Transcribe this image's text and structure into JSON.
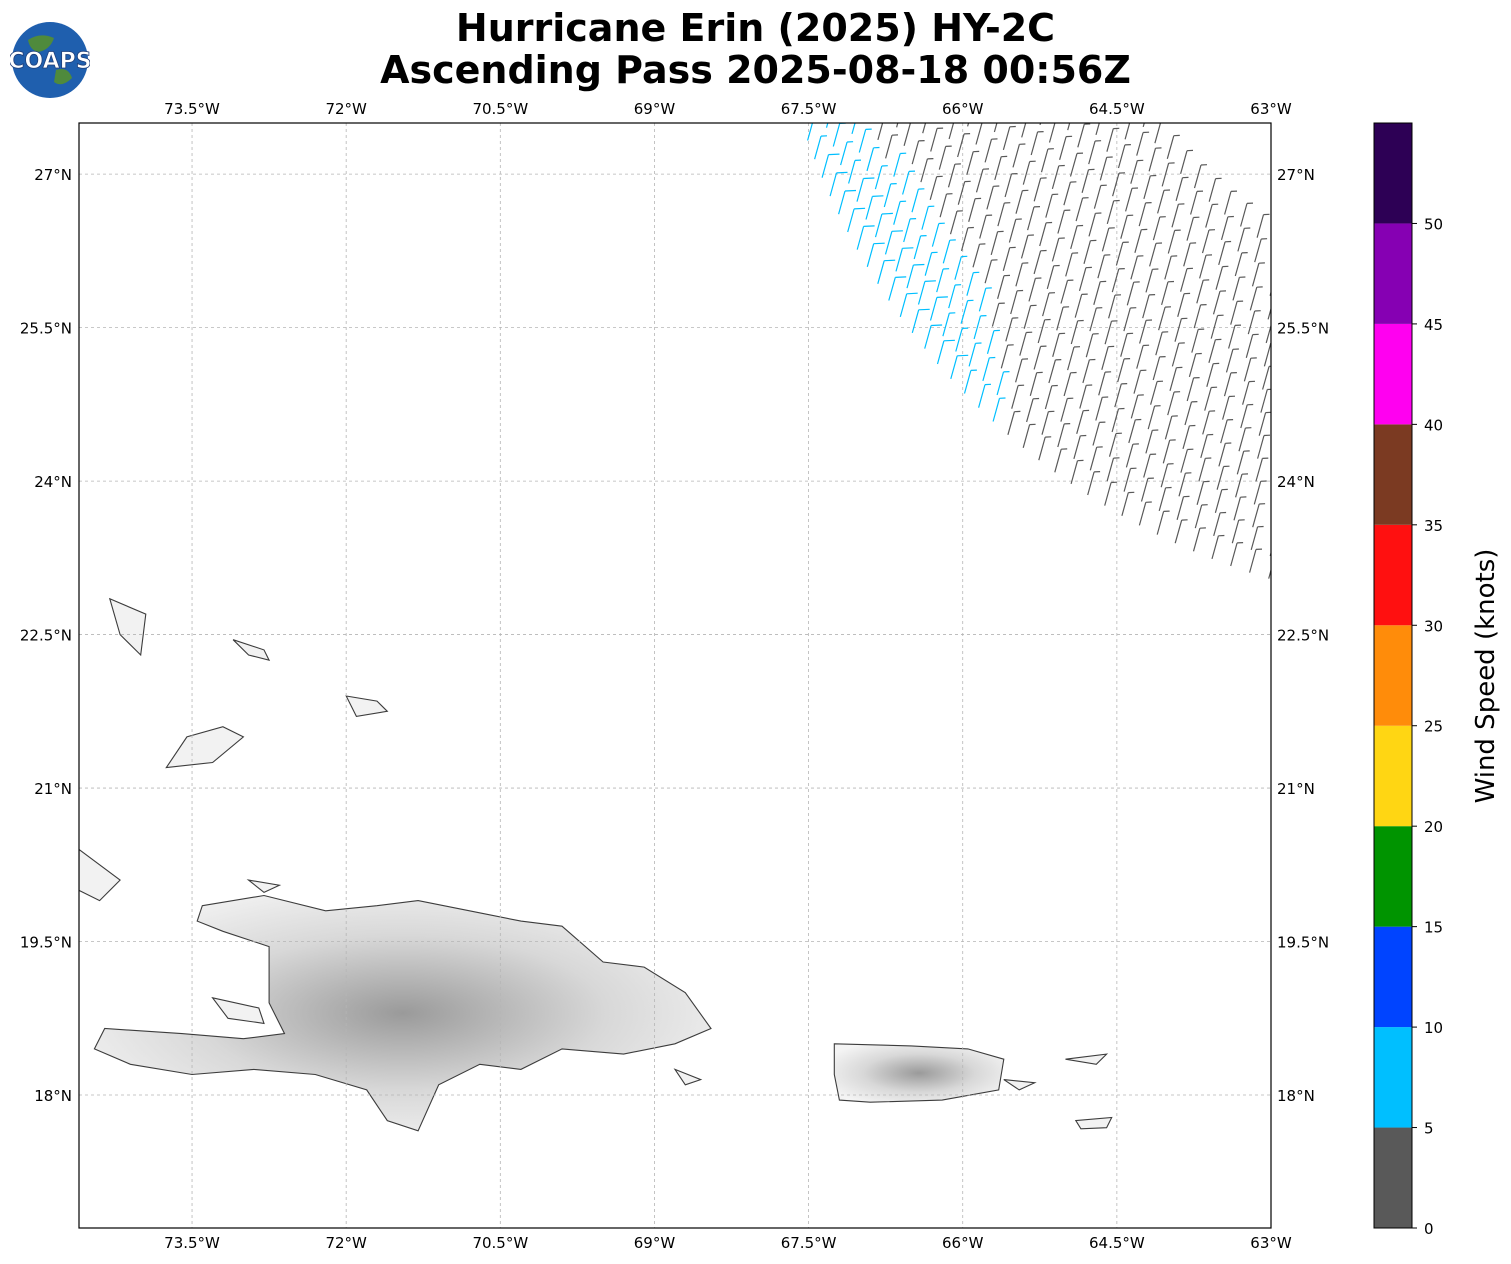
{
  "title": {
    "line1": "Hurricane Erin (2025) HY-2C",
    "line2": "Ascending Pass 2025-08-18 00:56Z"
  },
  "logo": {
    "text": "COAPS",
    "icon": "globe-logo-icon"
  },
  "map": {
    "lon_range": [
      -74.6,
      -63.0
    ],
    "lat_range": [
      16.7,
      27.5
    ],
    "grid": true,
    "lon_ticks": [
      {
        "value": -73.5,
        "label": "73.5°W"
      },
      {
        "value": -72.0,
        "label": "72°W"
      },
      {
        "value": -70.5,
        "label": "70.5°W"
      },
      {
        "value": -69.0,
        "label": "69°W"
      },
      {
        "value": -67.5,
        "label": "67.5°W"
      },
      {
        "value": -66.0,
        "label": "66°W"
      },
      {
        "value": -64.5,
        "label": "64.5°W"
      },
      {
        "value": -63.0,
        "label": "63°W"
      }
    ],
    "lat_ticks": [
      {
        "value": 27.0,
        "label": "27°N"
      },
      {
        "value": 25.5,
        "label": "25.5°N"
      },
      {
        "value": 24.0,
        "label": "24°N"
      },
      {
        "value": 22.5,
        "label": "22.5°N"
      },
      {
        "value": 21.0,
        "label": "21°N"
      },
      {
        "value": 19.5,
        "label": "19.5°N"
      },
      {
        "value": 18.0,
        "label": "18°N"
      }
    ],
    "land": [
      {
        "name": "Hispaniola",
        "points": [
          [
            -73.4,
            19.85
          ],
          [
            -72.8,
            19.95
          ],
          [
            -72.2,
            19.8
          ],
          [
            -71.7,
            19.85
          ],
          [
            -71.3,
            19.9
          ],
          [
            -70.8,
            19.8
          ],
          [
            -70.3,
            19.7
          ],
          [
            -69.9,
            19.65
          ],
          [
            -69.5,
            19.3
          ],
          [
            -69.1,
            19.25
          ],
          [
            -68.7,
            19.0
          ],
          [
            -68.45,
            18.65
          ],
          [
            -68.8,
            18.5
          ],
          [
            -69.3,
            18.4
          ],
          [
            -69.9,
            18.45
          ],
          [
            -70.3,
            18.25
          ],
          [
            -70.7,
            18.3
          ],
          [
            -71.1,
            18.1
          ],
          [
            -71.3,
            17.65
          ],
          [
            -71.6,
            17.75
          ],
          [
            -71.8,
            18.05
          ],
          [
            -72.3,
            18.2
          ],
          [
            -72.9,
            18.25
          ],
          [
            -73.5,
            18.2
          ],
          [
            -74.1,
            18.3
          ],
          [
            -74.45,
            18.45
          ],
          [
            -74.35,
            18.65
          ],
          [
            -73.6,
            18.6
          ],
          [
            -73.0,
            18.55
          ],
          [
            -72.6,
            18.6
          ],
          [
            -72.75,
            18.9
          ],
          [
            -72.75,
            19.45
          ],
          [
            -73.2,
            19.6
          ],
          [
            -73.45,
            19.7
          ]
        ]
      },
      {
        "name": "Puerto Rico",
        "points": [
          [
            -67.25,
            18.5
          ],
          [
            -66.5,
            18.48
          ],
          [
            -65.95,
            18.45
          ],
          [
            -65.6,
            18.35
          ],
          [
            -65.65,
            18.05
          ],
          [
            -66.2,
            17.95
          ],
          [
            -66.9,
            17.93
          ],
          [
            -67.2,
            17.95
          ],
          [
            -67.25,
            18.2
          ]
        ]
      },
      {
        "name": "Gonave",
        "points": [
          [
            -73.3,
            18.95
          ],
          [
            -72.85,
            18.85
          ],
          [
            -72.8,
            18.7
          ],
          [
            -73.15,
            18.75
          ]
        ]
      },
      {
        "name": "Great Inagua",
        "points": [
          [
            -73.75,
            21.2
          ],
          [
            -73.3,
            21.25
          ],
          [
            -73.0,
            21.5
          ],
          [
            -73.2,
            21.6
          ],
          [
            -73.55,
            21.5
          ]
        ]
      },
      {
        "name": "Acklins",
        "points": [
          [
            -74.3,
            22.85
          ],
          [
            -73.95,
            22.7
          ],
          [
            -74.0,
            22.3
          ],
          [
            -74.2,
            22.5
          ]
        ]
      },
      {
        "name": "Mayaguana",
        "points": [
          [
            -73.1,
            22.45
          ],
          [
            -72.8,
            22.35
          ],
          [
            -72.75,
            22.25
          ],
          [
            -72.95,
            22.3
          ]
        ]
      },
      {
        "name": "Caicos",
        "points": [
          [
            -72.0,
            21.9
          ],
          [
            -71.7,
            21.85
          ],
          [
            -71.6,
            21.75
          ],
          [
            -71.9,
            21.7
          ]
        ]
      },
      {
        "name": "Cuba tip",
        "points": [
          [
            -74.6,
            20.4
          ],
          [
            -74.2,
            20.1
          ],
          [
            -74.4,
            19.9
          ],
          [
            -74.6,
            20.0
          ]
        ]
      },
      {
        "name": "Tortuga",
        "points": [
          [
            -72.95,
            20.1
          ],
          [
            -72.65,
            20.05
          ],
          [
            -72.8,
            19.98
          ]
        ]
      },
      {
        "name": "Saona",
        "points": [
          [
            -68.8,
            18.25
          ],
          [
            -68.55,
            18.15
          ],
          [
            -68.7,
            18.1
          ]
        ]
      },
      {
        "name": "Vieques",
        "points": [
          [
            -65.6,
            18.15
          ],
          [
            -65.3,
            18.12
          ],
          [
            -65.45,
            18.05
          ]
        ]
      },
      {
        "name": "St Croix",
        "points": [
          [
            -64.9,
            17.75
          ],
          [
            -64.55,
            17.78
          ],
          [
            -64.6,
            17.68
          ],
          [
            -64.85,
            17.67
          ]
        ]
      },
      {
        "name": "Virgin Is",
        "points": [
          [
            -65.0,
            18.35
          ],
          [
            -64.6,
            18.4
          ],
          [
            -64.7,
            18.3
          ]
        ]
      }
    ],
    "barbs": {
      "count": 1360,
      "swath_left_edge_lon": -74.6,
      "swath_note": "wind barbs along HY-2C ascending swath"
    }
  },
  "colorbar": {
    "label": "Wind Speed (knots)",
    "ticks": [
      0,
      5,
      10,
      15,
      20,
      25,
      30,
      35,
      40,
      45,
      50
    ],
    "bins": [
      {
        "from": 0,
        "to": 5,
        "color": "#595959"
      },
      {
        "from": 5,
        "to": 10,
        "color": "#00bfff"
      },
      {
        "from": 10,
        "to": 15,
        "color": "#0044ff"
      },
      {
        "from": 15,
        "to": 20,
        "color": "#009400"
      },
      {
        "from": 20,
        "to": 25,
        "color": "#ffd613"
      },
      {
        "from": 25,
        "to": 30,
        "color": "#ff8c0a"
      },
      {
        "from": 30,
        "to": 35,
        "color": "#ff1010"
      },
      {
        "from": 35,
        "to": 40,
        "color": "#7b3a22"
      },
      {
        "from": 40,
        "to": 45,
        "color": "#ff00f0"
      },
      {
        "from": 45,
        "to": 50,
        "color": "#8600b3"
      },
      {
        "from": 50,
        "to": 55,
        "color": "#2d0055"
      }
    ]
  }
}
